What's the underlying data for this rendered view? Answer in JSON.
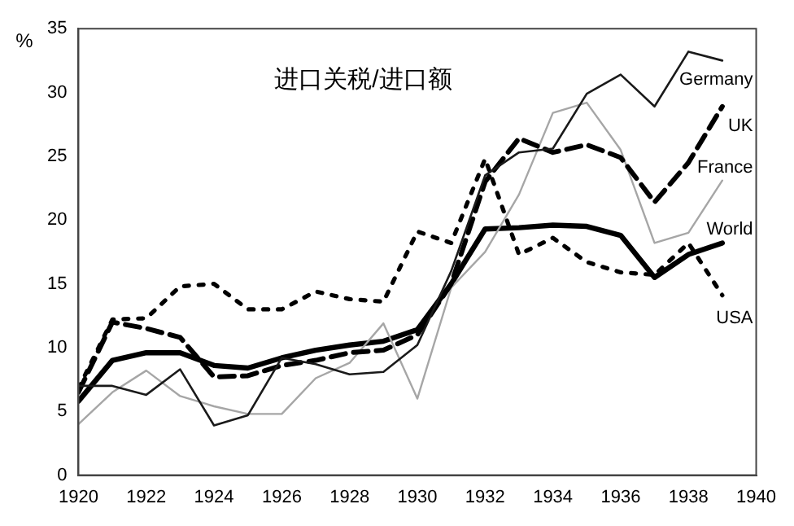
{
  "chart_data": {
    "type": "line",
    "title": "进口关税/进口额",
    "ylabel": "%",
    "x": [
      1920,
      1921,
      1922,
      1923,
      1924,
      1925,
      1926,
      1927,
      1928,
      1929,
      1930,
      1931,
      1932,
      1933,
      1934,
      1935,
      1936,
      1937,
      1938,
      1939
    ],
    "series": [
      {
        "name": "Germany",
        "color": "#1a1a1a",
        "line_style": "solid",
        "values": [
          7.0,
          7.0,
          6.3,
          8.3,
          3.9,
          4.7,
          9.2,
          8.7,
          7.9,
          8.1,
          10.2,
          16.0,
          23.5,
          25.3,
          25.6,
          29.9,
          31.4,
          28.9,
          33.2,
          32.5
        ]
      },
      {
        "name": "UK",
        "color": "#000000",
        "line_style": "dashed",
        "values": [
          6.5,
          12.0,
          11.5,
          10.8,
          7.7,
          7.8,
          8.6,
          9.0,
          9.6,
          9.8,
          11.0,
          15.0,
          23.0,
          26.4,
          25.3,
          25.9,
          24.9,
          21.4,
          24.5,
          28.9
        ]
      },
      {
        "name": "France",
        "color": "#a6a6a6",
        "line_style": "solid",
        "values": [
          4.0,
          6.5,
          8.2,
          6.2,
          5.4,
          4.8,
          4.8,
          7.6,
          8.8,
          11.9,
          6.0,
          14.7,
          17.5,
          22.0,
          28.4,
          29.2,
          25.5,
          18.2,
          19.0,
          23.1
        ]
      },
      {
        "name": "World",
        "color": "#000000",
        "line_style": "solid",
        "values": [
          5.8,
          9.0,
          9.6,
          9.6,
          8.6,
          8.4,
          9.2,
          9.8,
          10.2,
          10.5,
          11.4,
          15.0,
          19.3,
          19.4,
          19.6,
          19.5,
          18.8,
          15.5,
          17.3,
          18.2
        ]
      },
      {
        "name": "USA",
        "color": "#000000",
        "line_style": "dotted",
        "values": [
          6.8,
          12.2,
          12.3,
          14.8,
          15.0,
          13.0,
          13.0,
          14.4,
          13.8,
          13.6,
          19.1,
          18.2,
          24.8,
          17.3,
          18.6,
          16.7,
          15.9,
          15.7,
          18.2,
          14.1
        ]
      }
    ],
    "xlim": [
      1920,
      1940
    ],
    "xticks": [
      1920,
      1922,
      1924,
      1926,
      1928,
      1930,
      1932,
      1934,
      1936,
      1938,
      1940
    ],
    "ylim": [
      0,
      35
    ],
    "yticks": [
      0,
      5,
      10,
      15,
      20,
      25,
      30,
      35
    ],
    "grid": false,
    "legend": false,
    "marker": "none"
  }
}
